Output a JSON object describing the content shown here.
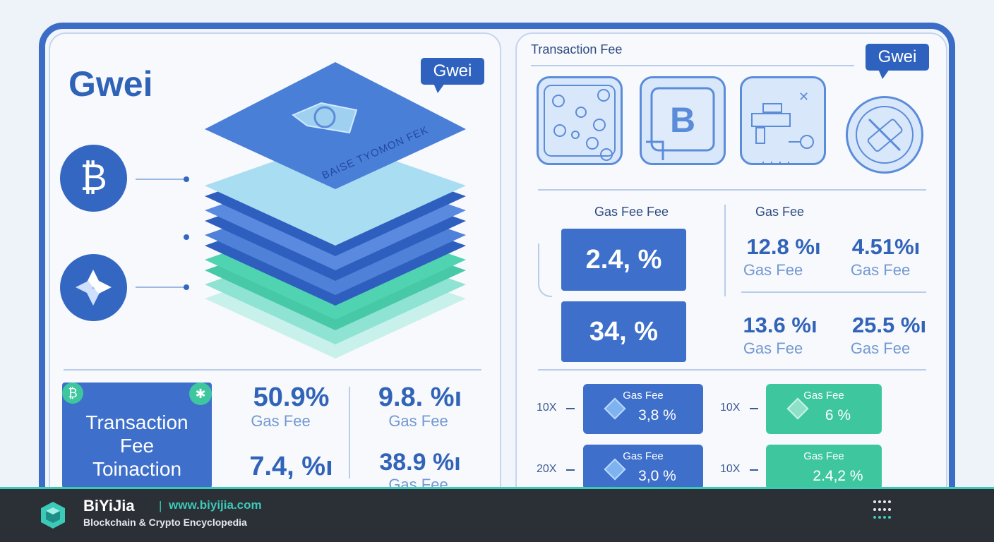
{
  "left": {
    "title": "Gwei",
    "bubble": "Gwei",
    "stack_label": "BAISE TYOMON FEK",
    "feature_box": "Transaction\nFee\nToinaction",
    "stats": [
      {
        "value": "50.9%",
        "label": "Gas Fee"
      },
      {
        "value": "9.8. %ı",
        "label": "Gas Fee"
      },
      {
        "value": "7.4, %ı",
        "label": ""
      },
      {
        "value": "38.9 %ı",
        "label": "Gas Fee"
      }
    ]
  },
  "right": {
    "heading": "Transaction Fee",
    "bubble": "Gwei",
    "left_col_title": "Gas Fee Fee",
    "right_col_title": "Gas Fee",
    "big_boxes": [
      "2.4, %",
      "34, %"
    ],
    "grid": [
      {
        "value": "12.8 %ı",
        "label": "Gas Fee"
      },
      {
        "value": "4.51%ı",
        "label": "Gas Fee"
      },
      {
        "value": "13.6 %ı",
        "label": "Gas Fee"
      },
      {
        "value": "25.5 %ı",
        "label": "Gas Fee"
      }
    ],
    "minis": [
      {
        "side": "10X",
        "title": "Gas Fee",
        "value": "3,8 %",
        "color": "#3d6fcb"
      },
      {
        "side": "10X",
        "title": "Gas Fee",
        "value": "6 %",
        "color": "#3ec79e"
      },
      {
        "side": "20X",
        "title": "Gas Fee",
        "value": "3,0 %",
        "color": "#3d6fcb"
      },
      {
        "side": "10X",
        "title": "Gas Fee",
        "value": "2.4,2 %",
        "color": "#3ec79e"
      }
    ]
  },
  "footer": {
    "brand": "BiYiJia",
    "separator": "|",
    "url": "www.biyijia.com",
    "tagline": "Blockchain & Crypto Encyclopedia"
  },
  "colors": {
    "accent": "#3b6cc6",
    "teal": "#3ec79e",
    "footer_bg": "#2b2f36"
  }
}
